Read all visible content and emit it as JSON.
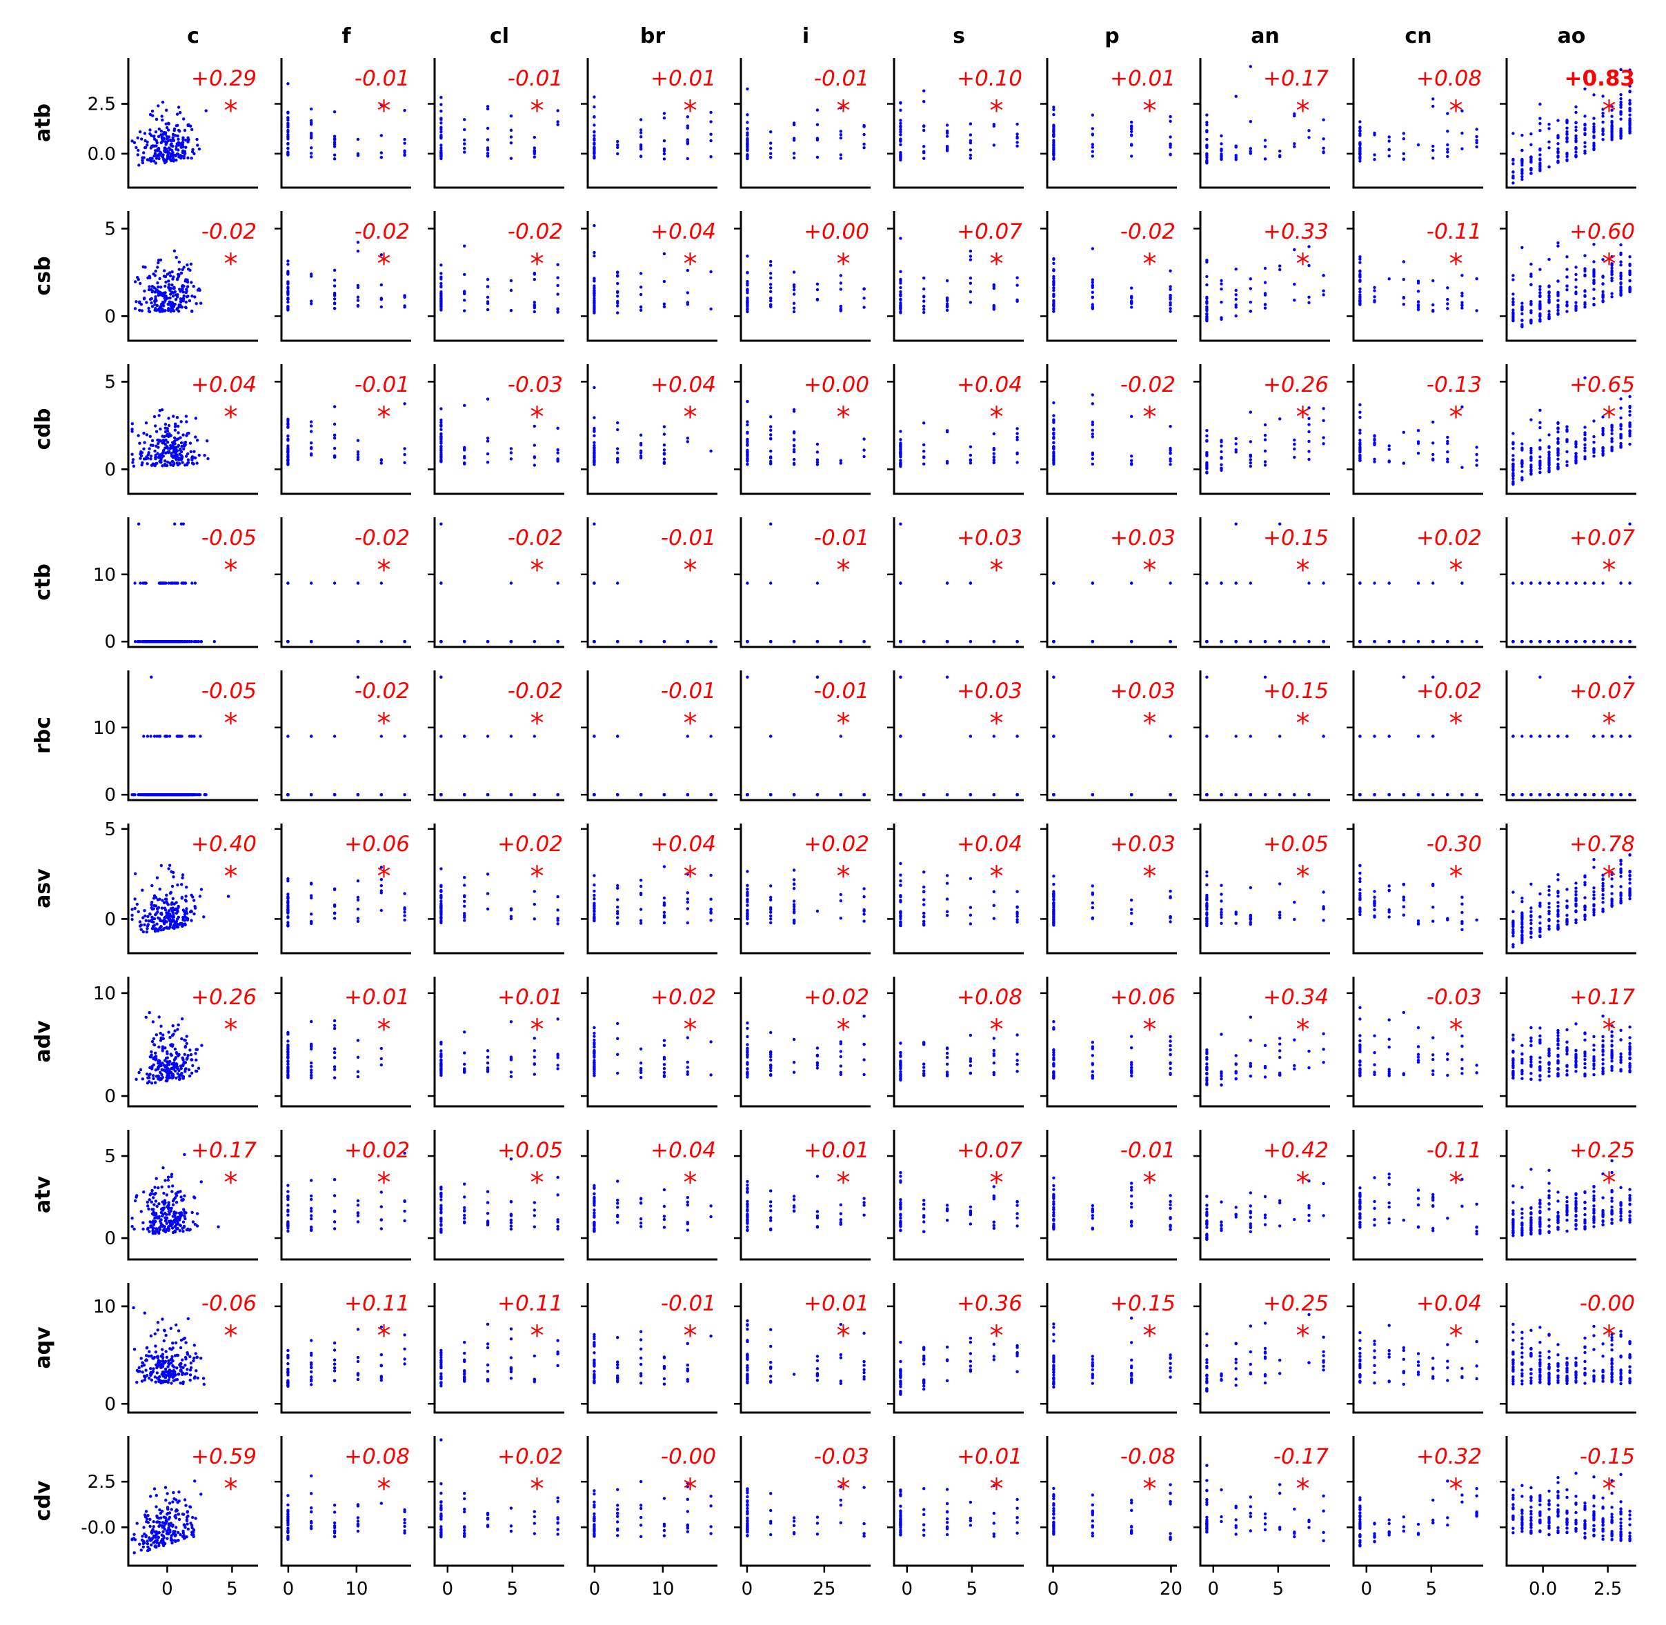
{
  "chart_data": {
    "type": "scatter",
    "layout": "scatter-matrix",
    "point_color": "#0000ff",
    "annotation_color": "#ff0000",
    "columns": [
      {
        "name": "c",
        "xlim": [
          -3,
          7
        ],
        "xticks": [
          0,
          5
        ],
        "xtick_labels": [
          "0",
          "5"
        ]
      },
      {
        "name": "f",
        "xlim": [
          -1,
          18
        ],
        "xticks": [
          0,
          10
        ],
        "xtick_labels": [
          "0",
          "10"
        ]
      },
      {
        "name": "cl",
        "xlim": [
          -1,
          9
        ],
        "xticks": [
          0,
          5
        ],
        "xtick_labels": [
          "0",
          "5"
        ]
      },
      {
        "name": "br",
        "xlim": [
          -1,
          18
        ],
        "xticks": [
          0,
          10
        ],
        "xtick_labels": [
          "0",
          "10"
        ]
      },
      {
        "name": "i",
        "xlim": [
          -2,
          40
        ],
        "xticks": [
          0,
          25
        ],
        "xtick_labels": [
          "0",
          "25"
        ]
      },
      {
        "name": "s",
        "xlim": [
          -1,
          9
        ],
        "xticks": [
          0,
          5
        ],
        "xtick_labels": [
          "0",
          "5"
        ]
      },
      {
        "name": "p",
        "xlim": [
          -1,
          21
        ],
        "xticks": [
          0,
          20
        ],
        "xtick_labels": [
          "0",
          "20"
        ]
      },
      {
        "name": "an",
        "xlim": [
          -1,
          9
        ],
        "xticks": [
          0,
          5
        ],
        "xtick_labels": [
          "0",
          "5"
        ]
      },
      {
        "name": "cn",
        "xlim": [
          -1,
          9
        ],
        "xticks": [
          0,
          5
        ],
        "xtick_labels": [
          "0",
          "5"
        ]
      },
      {
        "name": "ao",
        "xlim": [
          -1.4,
          3.6
        ],
        "xticks": [
          0.0,
          2.5
        ],
        "xtick_labels": [
          "0.0",
          "2.5"
        ]
      }
    ],
    "rows": [
      {
        "name": "atb",
        "ylim": [
          -1.7,
          4.8
        ],
        "yticks": [
          0.0,
          2.5
        ],
        "ytick_labels": [
          "0.0",
          "2.5"
        ],
        "correlations": [
          "+0.29",
          "-0.01",
          "-0.01",
          "+0.01",
          "-0.01",
          "+0.10",
          "+0.01",
          "+0.17",
          "+0.08",
          "+0.83"
        ]
      },
      {
        "name": "csb",
        "ylim": [
          -1.4,
          6.0
        ],
        "yticks": [
          0,
          5
        ],
        "ytick_labels": [
          "0",
          "5"
        ],
        "correlations": [
          "-0.02",
          "-0.02",
          "-0.02",
          "+0.04",
          "+0.00",
          "+0.07",
          "-0.02",
          "+0.33",
          "-0.11",
          "+0.60"
        ]
      },
      {
        "name": "cdb",
        "ylim": [
          -1.4,
          6.0
        ],
        "yticks": [
          0,
          5
        ],
        "ytick_labels": [
          "0",
          "5"
        ],
        "correlations": [
          "+0.04",
          "-0.01",
          "-0.03",
          "+0.04",
          "+0.00",
          "+0.04",
          "-0.02",
          "+0.26",
          "-0.13",
          "+0.65"
        ]
      },
      {
        "name": "ctb",
        "ylim": [
          -0.8,
          18.5
        ],
        "yticks": [
          0,
          10
        ],
        "ytick_labels": [
          "0",
          "10"
        ],
        "correlations": [
          "-0.05",
          "-0.02",
          "-0.02",
          "-0.01",
          "-0.01",
          "+0.03",
          "+0.03",
          "+0.15",
          "+0.02",
          "+0.07"
        ]
      },
      {
        "name": "rbc",
        "ylim": [
          -0.8,
          18.5
        ],
        "yticks": [
          0,
          10
        ],
        "ytick_labels": [
          "0",
          "10"
        ],
        "correlations": [
          "-0.05",
          "-0.02",
          "-0.02",
          "-0.01",
          "-0.01",
          "+0.03",
          "+0.03",
          "+0.15",
          "+0.02",
          "+0.07"
        ]
      },
      {
        "name": "asv",
        "ylim": [
          -1.9,
          5.3
        ],
        "yticks": [
          0,
          5
        ],
        "ytick_labels": [
          "0",
          "5"
        ],
        "correlations": [
          "+0.40",
          "+0.06",
          "+0.02",
          "+0.04",
          "+0.02",
          "+0.04",
          "+0.03",
          "+0.05",
          "-0.30",
          "+0.78"
        ]
      },
      {
        "name": "adv",
        "ylim": [
          -1.0,
          11.6
        ],
        "yticks": [
          0,
          10
        ],
        "ytick_labels": [
          "0",
          "10"
        ],
        "correlations": [
          "+0.26",
          "+0.01",
          "+0.01",
          "+0.02",
          "+0.02",
          "+0.08",
          "+0.06",
          "+0.34",
          "-0.03",
          "+0.17"
        ]
      },
      {
        "name": "atv",
        "ylim": [
          -1.3,
          6.6
        ],
        "yticks": [
          0,
          5
        ],
        "ytick_labels": [
          "0",
          "5"
        ],
        "correlations": [
          "+0.17",
          "+0.02",
          "+0.05",
          "+0.04",
          "+0.01",
          "+0.07",
          "-0.01",
          "+0.42",
          "-0.11",
          "+0.25"
        ]
      },
      {
        "name": "aqv",
        "ylim": [
          -0.9,
          12.4
        ],
        "yticks": [
          0,
          10
        ],
        "ytick_labels": [
          "0",
          "10"
        ],
        "correlations": [
          "-0.06",
          "+0.11",
          "+0.11",
          "-0.01",
          "+0.01",
          "+0.36",
          "+0.15",
          "+0.25",
          "+0.04",
          "-0.00"
        ]
      },
      {
        "name": "cdv",
        "ylim": [
          -2.1,
          5.0
        ],
        "yticks": [
          0.0,
          2.5
        ],
        "ytick_labels": [
          "-0.0",
          "2.5"
        ],
        "correlations": [
          "+0.59",
          "+0.08",
          "+0.02",
          "-0.00",
          "-0.03",
          "+0.01",
          "-0.08",
          "-0.17",
          "+0.32",
          "-0.15"
        ]
      }
    ],
    "significance_marker": "*",
    "highlighted_cells": [
      [
        0,
        9
      ]
    ]
  }
}
